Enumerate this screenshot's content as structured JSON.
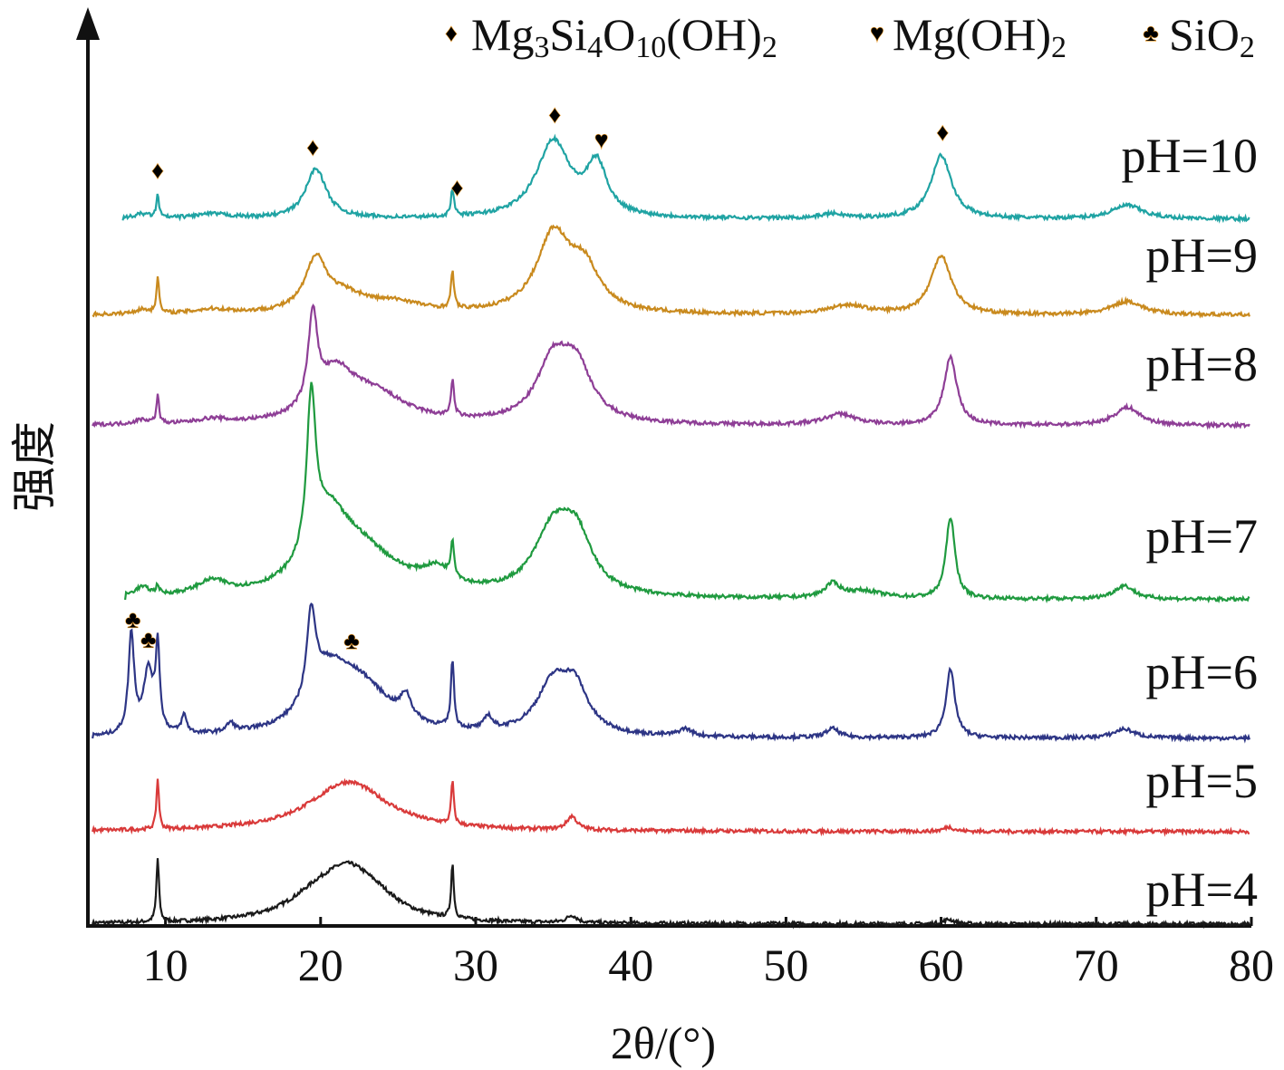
{
  "chart_data": {
    "type": "line",
    "xlabel": "2θ/(°)",
    "ylabel": "强度",
    "xlim": [
      5,
      80
    ],
    "x_ticks": [
      10,
      20,
      30,
      40,
      50,
      60,
      70,
      80
    ],
    "legend": {
      "placement": "top-right",
      "entries": [
        {
          "symbol": "♦",
          "label": "Mg₃Si₄O₁₀(OH)₂"
        },
        {
          "symbol": "♥",
          "label": "Mg(OH)₂"
        },
        {
          "symbol": "♣",
          "label": "SiO₂"
        }
      ]
    },
    "series": [
      {
        "name": "pH=4",
        "color": "#1a1a1a",
        "peaks": [
          [
            9.5,
            70,
            0.1
          ],
          [
            20.0,
            30,
            2.5
          ],
          [
            21.8,
            36,
            1.8
          ],
          [
            23.5,
            20,
            2.0
          ],
          [
            28.5,
            60,
            0.1
          ],
          [
            36.2,
            8,
            0.4
          ],
          [
            60.5,
            5,
            0.4
          ]
        ]
      },
      {
        "name": "pH=5",
        "color": "#d93a3a",
        "peaks": [
          [
            9.5,
            55,
            0.1
          ],
          [
            21.8,
            55,
            3.0
          ],
          [
            28.5,
            48,
            0.1
          ],
          [
            36.2,
            15,
            0.4
          ],
          [
            60.5,
            5,
            0.4
          ]
        ]
      },
      {
        "name": "pH=6",
        "color": "#2d3585",
        "peaks": [
          [
            7.8,
            110,
            0.22
          ],
          [
            8.9,
            70,
            0.4
          ],
          [
            9.5,
            90,
            0.15
          ],
          [
            11.2,
            20,
            0.2
          ],
          [
            14.2,
            10,
            0.3
          ],
          [
            19.4,
            95,
            0.35
          ],
          [
            20.5,
            50,
            1.5
          ],
          [
            22.5,
            55,
            2.5
          ],
          [
            25.5,
            25,
            0.4
          ],
          [
            28.5,
            75,
            0.12
          ],
          [
            30.8,
            15,
            0.3
          ],
          [
            35.0,
            55,
            1.3
          ],
          [
            36.4,
            45,
            1.0
          ],
          [
            43.5,
            8,
            0.5
          ],
          [
            53.0,
            10,
            0.5
          ],
          [
            60.6,
            75,
            0.35
          ],
          [
            71.8,
            10,
            0.8
          ]
        ]
      },
      {
        "name": "pH=7",
        "color": "#1f9a3f",
        "peaks": [
          [
            8.5,
            10,
            0.6
          ],
          [
            9.5,
            10,
            0.1
          ],
          [
            13.0,
            15,
            1.2
          ],
          [
            19.4,
            170,
            0.35
          ],
          [
            20.5,
            65,
            1.5
          ],
          [
            22.5,
            50,
            3.0
          ],
          [
            27.5,
            20,
            1.2
          ],
          [
            28.5,
            40,
            0.12
          ],
          [
            35.0,
            70,
            1.5
          ],
          [
            36.5,
            55,
            1.2
          ],
          [
            53.0,
            15,
            0.6
          ],
          [
            55.0,
            8,
            1.5
          ],
          [
            60.6,
            90,
            0.35
          ],
          [
            71.8,
            15,
            0.8
          ]
        ]
      },
      {
        "name": "pH=8",
        "color": "#8e3e96",
        "peaks": [
          [
            8.5,
            5,
            0.6
          ],
          [
            9.5,
            30,
            0.1
          ],
          [
            13.0,
            5,
            1.2
          ],
          [
            19.5,
            100,
            0.35
          ],
          [
            21.0,
            50,
            1.5
          ],
          [
            23.5,
            30,
            2.5
          ],
          [
            28.5,
            40,
            0.12
          ],
          [
            35.0,
            65,
            1.3
          ],
          [
            36.5,
            55,
            1.2
          ],
          [
            53.5,
            12,
            1.2
          ],
          [
            60.6,
            75,
            0.5
          ],
          [
            72.0,
            20,
            1.0
          ]
        ]
      },
      {
        "name": "pH=9",
        "color": "#c98a1e",
        "peaks": [
          [
            8.5,
            5,
            0.6
          ],
          [
            9.5,
            40,
            0.1
          ],
          [
            13.0,
            5,
            1.5
          ],
          [
            19.7,
            55,
            0.8
          ],
          [
            21.5,
            20,
            2.0
          ],
          [
            25.0,
            10,
            2.0
          ],
          [
            28.5,
            40,
            0.12
          ],
          [
            35.0,
            85,
            1.3
          ],
          [
            37.0,
            45,
            1.2
          ],
          [
            54.0,
            10,
            1.5
          ],
          [
            60.0,
            65,
            0.8
          ],
          [
            72.0,
            15,
            1.2
          ]
        ]
      },
      {
        "name": "pH=10",
        "color": "#1fa3a3",
        "peaks": [
          [
            8.5,
            5,
            0.6
          ],
          [
            9.5,
            25,
            0.1
          ],
          [
            13.0,
            5,
            1.5
          ],
          [
            19.7,
            55,
            0.8
          ],
          [
            28.5,
            30,
            0.12
          ],
          [
            35.0,
            85,
            1.3
          ],
          [
            37.8,
            55,
            0.8
          ],
          [
            53.0,
            5,
            1.0
          ],
          [
            60.0,
            70,
            0.8
          ],
          [
            72.0,
            15,
            1.2
          ]
        ]
      }
    ],
    "markers": [
      {
        "series": "pH=10",
        "x": 9.5,
        "symbol": "♦"
      },
      {
        "series": "pH=10",
        "x": 19.5,
        "symbol": "♦"
      },
      {
        "series": "pH=10",
        "x": 28.8,
        "symbol": "♦"
      },
      {
        "series": "pH=10",
        "x": 35.1,
        "symbol": "♦"
      },
      {
        "series": "pH=10",
        "x": 38.1,
        "symbol": "♥"
      },
      {
        "series": "pH=10",
        "x": 60.1,
        "symbol": "♦"
      },
      {
        "series": "pH=6",
        "x": 7.9,
        "symbol": "♣"
      },
      {
        "series": "pH=6",
        "x": 8.9,
        "symbol": "♣"
      },
      {
        "series": "pH=6",
        "x": 22.0,
        "symbol": "♣"
      }
    ]
  }
}
